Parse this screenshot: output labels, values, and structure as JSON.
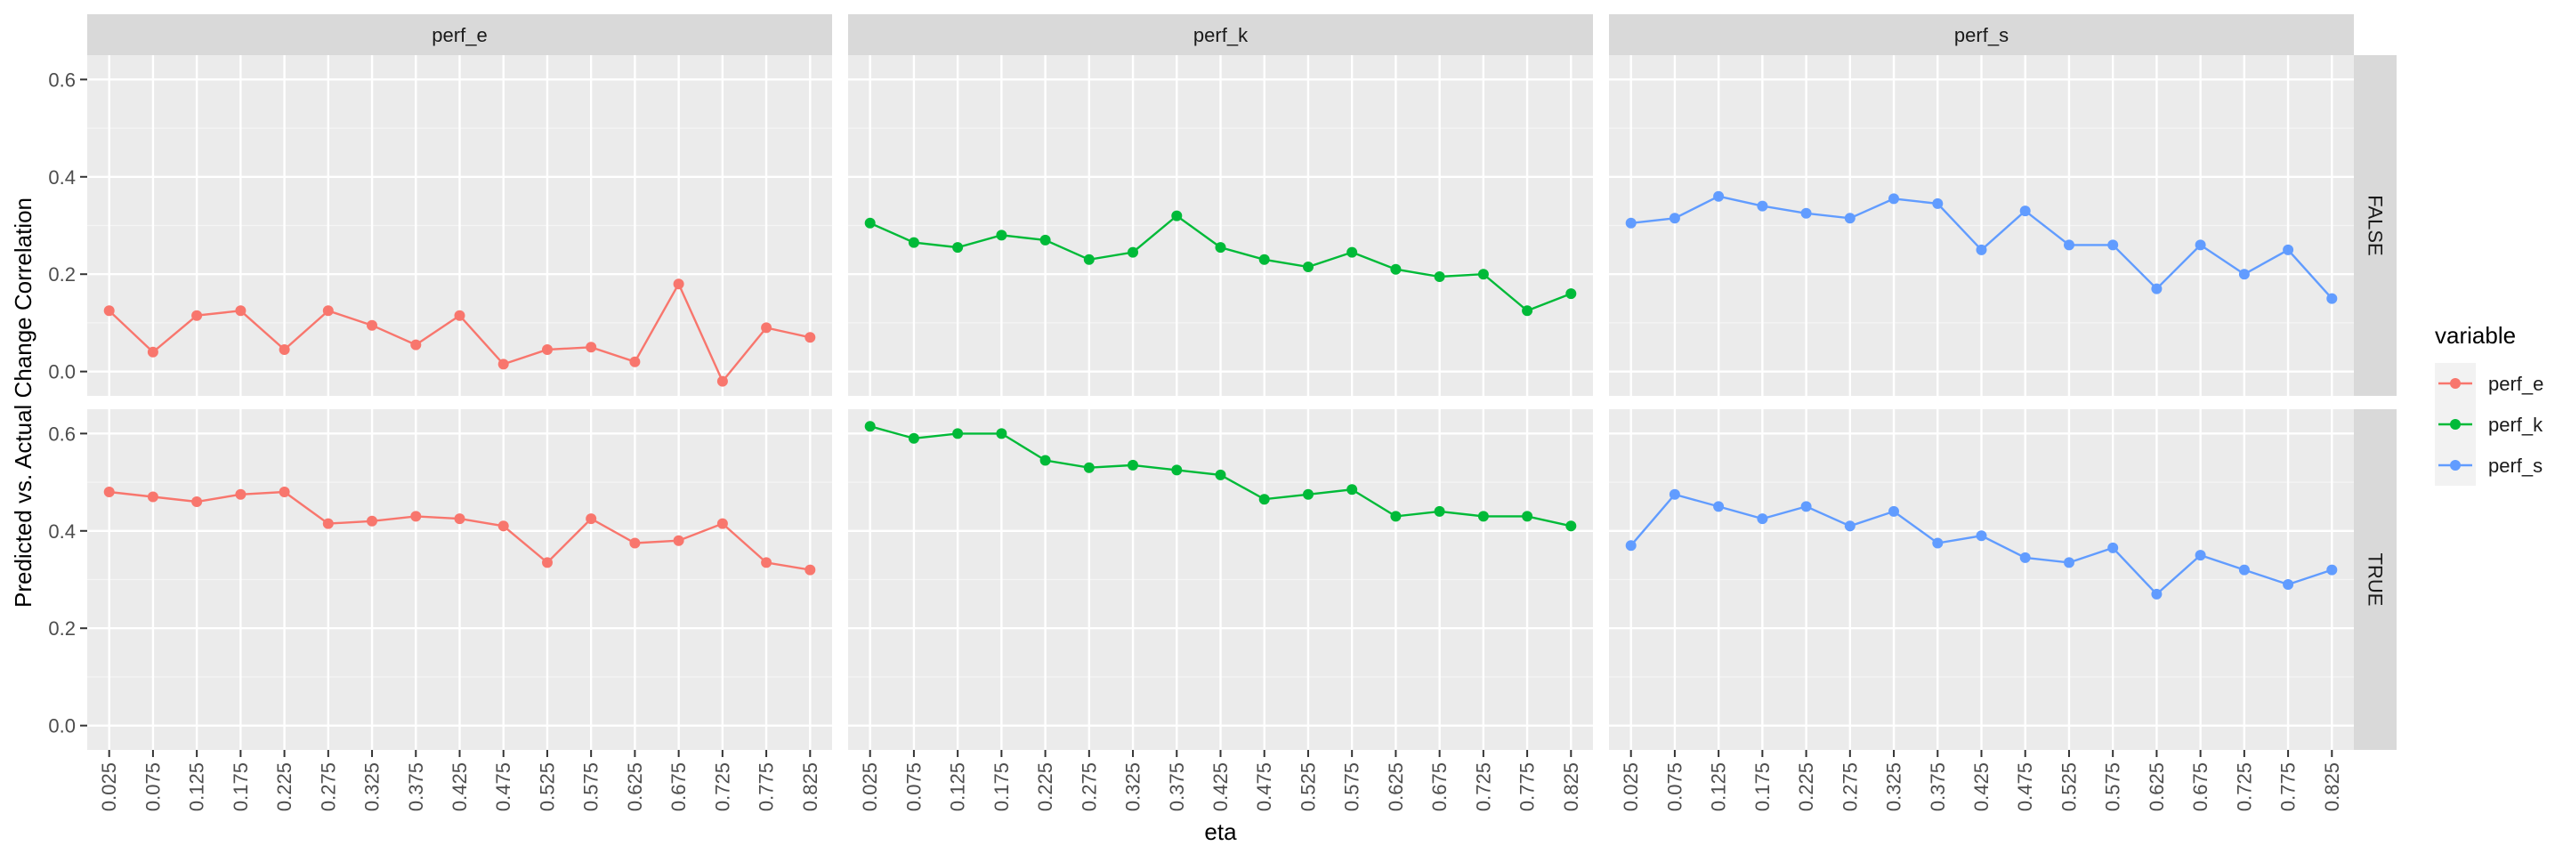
{
  "chart_data": {
    "type": "line",
    "xlabel": "eta",
    "ylabel": "Predicted vs. Actual Change Correlation",
    "x": [
      "0.025",
      "0.075",
      "0.125",
      "0.175",
      "0.225",
      "0.275",
      "0.325",
      "0.375",
      "0.425",
      "0.475",
      "0.525",
      "0.575",
      "0.625",
      "0.675",
      "0.725",
      "0.775",
      "0.825"
    ],
    "ylim": [
      -0.05,
      0.65
    ],
    "y_ticks": [
      "0.0",
      "0.2",
      "0.4",
      "0.6"
    ],
    "grid": true,
    "legend": {
      "title": "variable",
      "position": "right",
      "entries": [
        "perf_e",
        "perf_k",
        "perf_s"
      ]
    },
    "colors": {
      "perf_e": "#F8766D",
      "perf_k": "#00BA38",
      "perf_s": "#619CFF"
    },
    "facet_cols": [
      "perf_e",
      "perf_k",
      "perf_s"
    ],
    "facet_rows": [
      "FALSE",
      "TRUE"
    ],
    "panels": [
      {
        "row": "FALSE",
        "col": "perf_e",
        "series": "perf_e",
        "values": [
          0.125,
          0.04,
          0.115,
          0.125,
          0.045,
          0.125,
          0.095,
          0.055,
          0.115,
          0.015,
          0.045,
          0.05,
          0.02,
          0.18,
          -0.02,
          0.09,
          0.07
        ]
      },
      {
        "row": "FALSE",
        "col": "perf_k",
        "series": "perf_k",
        "values": [
          0.305,
          0.265,
          0.255,
          0.28,
          0.27,
          0.23,
          0.245,
          0.32,
          0.255,
          0.23,
          0.215,
          0.245,
          0.21,
          0.195,
          0.2,
          0.125,
          0.16
        ]
      },
      {
        "row": "FALSE",
        "col": "perf_s",
        "series": "perf_s",
        "values": [
          0.305,
          0.315,
          0.36,
          0.34,
          0.325,
          0.315,
          0.355,
          0.345,
          0.25,
          0.33,
          0.26,
          0.26,
          0.17,
          0.26,
          0.2,
          0.25,
          0.15
        ]
      },
      {
        "row": "TRUE",
        "col": "perf_e",
        "series": "perf_e",
        "values": [
          0.48,
          0.47,
          0.46,
          0.475,
          0.48,
          0.415,
          0.42,
          0.43,
          0.425,
          0.41,
          0.335,
          0.425,
          0.375,
          0.38,
          0.415,
          0.335,
          0.32
        ]
      },
      {
        "row": "TRUE",
        "col": "perf_k",
        "series": "perf_k",
        "values": [
          0.615,
          0.59,
          0.6,
          0.6,
          0.545,
          0.53,
          0.535,
          0.525,
          0.515,
          0.465,
          0.475,
          0.485,
          0.43,
          0.44,
          0.43,
          0.43,
          0.41
        ]
      },
      {
        "row": "TRUE",
        "col": "perf_s",
        "series": "perf_s",
        "values": [
          0.37,
          0.475,
          0.45,
          0.425,
          0.45,
          0.41,
          0.44,
          0.375,
          0.39,
          0.345,
          0.335,
          0.365,
          0.27,
          0.35,
          0.32,
          0.29,
          0.32
        ]
      }
    ]
  }
}
